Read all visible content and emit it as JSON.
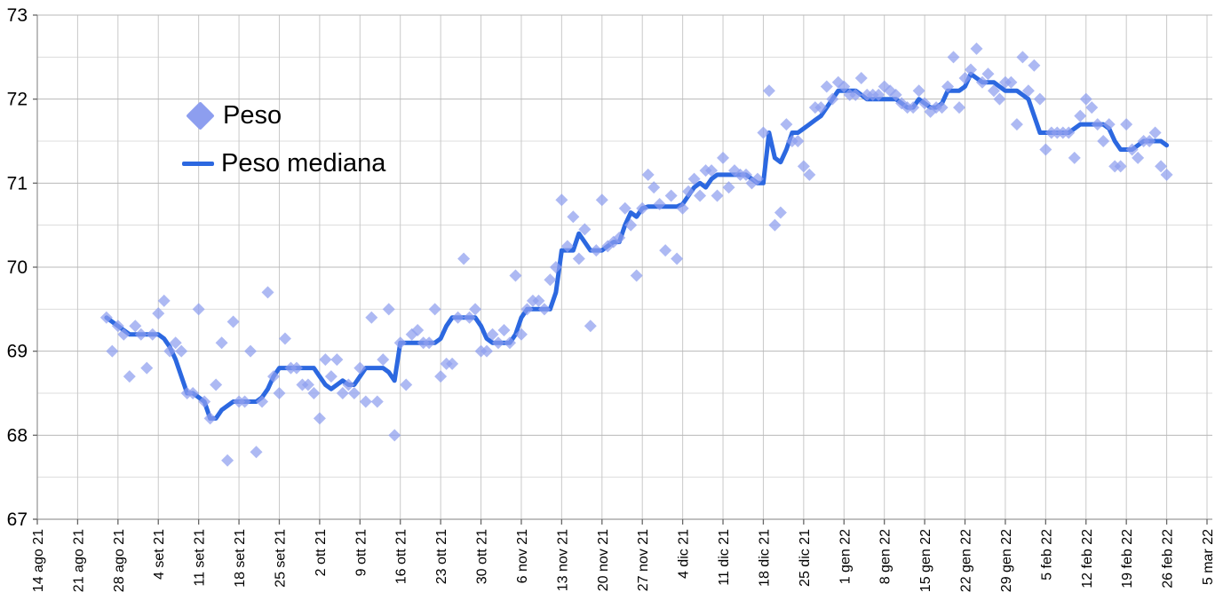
{
  "legend": {
    "peso": "Peso",
    "mediana": "Peso mediana"
  },
  "colors": {
    "scatter": "#8d9eef",
    "median_line": "#2c68e0",
    "grid_major": "#b8b8b8",
    "grid_minor": "#dcdcdc",
    "grid_vertical": "#c9c9c9",
    "axis": "#9a9a9a",
    "text": "#000000",
    "background": "#ffffff"
  },
  "chart_data": {
    "type": "scatter",
    "title": "",
    "xlabel": "",
    "ylabel": "",
    "grid": true,
    "legend_position": "top-left-inside",
    "y_axis": {
      "min": 67,
      "max": 73,
      "major_step": 1,
      "minor_step": 0.5,
      "tick_labels": [
        "73",
        "72",
        "71",
        "70",
        "69",
        "68",
        "67"
      ]
    },
    "x_axis": {
      "tick_labels": [
        "14 ago 21",
        "21 ago 21",
        "28 ago 21",
        "4 set 21",
        "11 set 21",
        "18 set 21",
        "25 set 21",
        "2 ott 21",
        "9 ott 21",
        "16 ott 21",
        "23 ott 21",
        "30 ott 21",
        "6 nov 21",
        "13 nov 21",
        "20 nov 21",
        "27 nov 21",
        "4 dic 21",
        "11 dic 21",
        "18 dic 21",
        "25 dic 21",
        "1 gen 22",
        "8 gen 22",
        "15 gen 22",
        "22 gen 22",
        "29 gen 22",
        "5 feb 22",
        "12 feb 22",
        "19 feb 22",
        "26 feb 22",
        "5 mar 22"
      ],
      "days_per_tick": 7,
      "total_days": 203,
      "data_start_offset_days": 12
    },
    "dates": [
      "26 ago",
      "27 ago",
      "28 ago",
      "29 ago",
      "30 ago",
      "31 ago",
      "1 set",
      "2 set",
      "3 set",
      "4 set",
      "5 set",
      "6 set",
      "7 set",
      "8 set",
      "9 set",
      "10 set",
      "11 set",
      "12 set",
      "13 set",
      "14 set",
      "15 set",
      "16 set",
      "17 set",
      "18 set",
      "19 set",
      "20 set",
      "21 set",
      "22 set",
      "23 set",
      "24 set",
      "25 set",
      "26 set",
      "27 set",
      "28 set",
      "29 set",
      "30 set",
      "1 ott",
      "2 ott",
      "3 ott",
      "4 ott",
      "5 ott",
      "6 ott",
      "7 ott",
      "8 ott",
      "9 ott",
      "10 ott",
      "11 ott",
      "12 ott",
      "13 ott",
      "14 ott",
      "15 ott",
      "16 ott",
      "17 ott",
      "18 ott",
      "19 ott",
      "20 ott",
      "21 ott",
      "22 ott",
      "23 ott",
      "24 ott",
      "25 ott",
      "26 ott",
      "27 ott",
      "28 ott",
      "29 ott",
      "30 ott",
      "31 ott",
      "1 nov",
      "2 nov",
      "3 nov",
      "4 nov",
      "5 nov",
      "6 nov",
      "7 nov",
      "8 nov",
      "9 nov",
      "10 nov",
      "11 nov",
      "12 nov",
      "13 nov",
      "14 nov",
      "15 nov",
      "16 nov",
      "17 nov",
      "18 nov",
      "19 nov",
      "20 nov",
      "21 nov",
      "22 nov",
      "23 nov",
      "24 nov",
      "25 nov",
      "26 nov",
      "27 nov",
      "28 nov",
      "29 nov",
      "30 nov",
      "1 dic",
      "2 dic",
      "3 dic",
      "4 dic",
      "5 dic",
      "6 dic",
      "7 dic",
      "8 dic",
      "9 dic",
      "10 dic",
      "11 dic",
      "12 dic",
      "13 dic",
      "14 dic",
      "15 dic",
      "16 dic",
      "17 dic",
      "18 dic",
      "19 dic",
      "20 dic",
      "21 dic",
      "22 dic",
      "23 dic",
      "24 dic",
      "25 dic",
      "26 dic",
      "27 dic",
      "28 dic",
      "29 dic",
      "30 dic",
      "31 dic",
      "1 gen",
      "2 gen",
      "3 gen",
      "4 gen",
      "5 gen",
      "6 gen",
      "7 gen",
      "8 gen",
      "9 gen",
      "10 gen",
      "11 gen",
      "12 gen",
      "13 gen",
      "14 gen",
      "15 gen",
      "16 gen",
      "17 gen",
      "18 gen",
      "19 gen",
      "20 gen",
      "21 gen",
      "22 gen",
      "23 gen",
      "24 gen",
      "25 gen",
      "26 gen",
      "27 gen",
      "28 gen",
      "29 gen",
      "30 gen",
      "31 gen",
      "1 feb",
      "2 feb",
      "3 feb",
      "4 feb",
      "5 feb",
      "6 feb",
      "7 feb",
      "8 feb",
      "9 feb",
      "10 feb",
      "11 feb",
      "12 feb",
      "13 feb",
      "14 feb",
      "15 feb",
      "16 feb",
      "17 feb",
      "18 feb",
      "19 feb",
      "20 feb",
      "21 feb",
      "22 feb",
      "23 feb",
      "24 feb",
      "25 feb",
      "26 feb"
    ],
    "series": [
      {
        "name": "Peso",
        "type": "scatter",
        "marker": "diamond",
        "values": [
          69.4,
          69.0,
          69.3,
          69.2,
          68.7,
          69.3,
          69.2,
          68.8,
          69.2,
          69.45,
          69.6,
          69.0,
          69.1,
          69.0,
          68.5,
          68.5,
          69.5,
          68.4,
          68.2,
          68.6,
          69.1,
          67.7,
          69.35,
          68.4,
          68.4,
          69.0,
          67.8,
          68.4,
          69.7,
          68.7,
          68.5,
          69.15,
          68.8,
          68.8,
          68.6,
          68.6,
          68.5,
          68.2,
          68.9,
          68.7,
          68.9,
          68.5,
          68.6,
          68.5,
          68.8,
          68.4,
          69.4,
          68.4,
          68.9,
          69.5,
          68.0,
          69.1,
          68.6,
          69.2,
          69.25,
          69.1,
          69.1,
          69.5,
          68.7,
          68.85,
          68.85,
          69.4,
          70.1,
          69.4,
          69.5,
          69.0,
          69.0,
          69.2,
          69.1,
          69.25,
          69.1,
          69.9,
          69.2,
          69.5,
          69.6,
          69.6,
          69.5,
          69.85,
          70.0,
          70.8,
          70.25,
          70.6,
          70.1,
          70.45,
          69.3,
          70.2,
          70.8,
          70.25,
          70.3,
          70.35,
          70.7,
          70.5,
          69.9,
          70.7,
          71.1,
          70.95,
          70.75,
          70.2,
          70.85,
          70.1,
          70.7,
          70.9,
          71.05,
          70.85,
          71.15,
          71.15,
          70.85,
          71.3,
          70.95,
          71.15,
          71.1,
          71.1,
          71.0,
          71.05,
          71.6,
          72.1,
          70.5,
          70.65,
          71.7,
          71.5,
          71.5,
          71.2,
          71.1,
          71.9,
          71.9,
          72.15,
          72.0,
          72.2,
          72.15,
          72.05,
          72.05,
          72.25,
          72.05,
          72.05,
          72.05,
          72.15,
          72.1,
          72.05,
          71.95,
          71.9,
          71.9,
          72.1,
          71.95,
          71.85,
          71.9,
          71.9,
          72.15,
          72.5,
          71.9,
          72.25,
          72.35,
          72.6,
          72.2,
          72.3,
          72.1,
          72.0,
          72.2,
          72.2,
          71.7,
          72.5,
          72.1,
          72.4,
          72.0,
          71.4,
          71.6,
          71.6,
          71.6,
          71.6,
          71.3,
          71.8,
          72.0,
          71.9,
          71.7,
          71.5,
          71.7,
          71.2,
          71.2,
          71.7,
          71.4,
          71.3,
          71.5,
          71.5,
          71.6,
          71.2,
          71.1
        ]
      },
      {
        "name": "Peso mediana",
        "type": "line",
        "values": [
          69.4,
          69.35,
          69.3,
          69.25,
          69.2,
          69.2,
          69.2,
          69.2,
          69.2,
          69.2,
          69.15,
          69.05,
          68.9,
          68.7,
          68.5,
          68.5,
          68.45,
          68.4,
          68.2,
          68.2,
          68.3,
          68.35,
          68.4,
          68.4,
          68.4,
          68.4,
          68.4,
          68.45,
          68.55,
          68.7,
          68.8,
          68.8,
          68.8,
          68.8,
          68.8,
          68.8,
          68.8,
          68.7,
          68.6,
          68.55,
          68.6,
          68.65,
          68.6,
          68.6,
          68.7,
          68.8,
          68.8,
          68.8,
          68.8,
          68.75,
          68.65,
          69.1,
          69.1,
          69.1,
          69.1,
          69.1,
          69.1,
          69.1,
          69.15,
          69.3,
          69.4,
          69.4,
          69.4,
          69.4,
          69.4,
          69.3,
          69.15,
          69.1,
          69.1,
          69.1,
          69.1,
          69.2,
          69.4,
          69.5,
          69.5,
          69.5,
          69.5,
          69.5,
          69.7,
          70.2,
          70.2,
          70.2,
          70.4,
          70.3,
          70.2,
          70.2,
          70.2,
          70.25,
          70.3,
          70.3,
          70.5,
          70.65,
          70.6,
          70.7,
          70.72,
          70.72,
          70.72,
          70.72,
          70.72,
          70.72,
          70.75,
          70.85,
          70.95,
          71.0,
          70.95,
          71.05,
          71.1,
          71.1,
          71.1,
          71.1,
          71.1,
          71.1,
          71.05,
          71.0,
          71.0,
          71.6,
          71.3,
          71.25,
          71.4,
          71.6,
          71.6,
          71.65,
          71.7,
          71.75,
          71.8,
          71.9,
          72.0,
          72.1,
          72.1,
          72.1,
          72.1,
          72.05,
          72.0,
          72.0,
          72.0,
          72.0,
          72.0,
          72.0,
          71.95,
          71.9,
          71.9,
          72.0,
          71.95,
          71.9,
          71.9,
          71.95,
          72.1,
          72.1,
          72.1,
          72.15,
          72.3,
          72.25,
          72.2,
          72.2,
          72.2,
          72.15,
          72.1,
          72.1,
          72.1,
          72.05,
          72.0,
          71.8,
          71.6,
          71.6,
          71.6,
          71.6,
          71.6,
          71.6,
          71.65,
          71.7,
          71.7,
          71.7,
          71.7,
          71.7,
          71.65,
          71.5,
          71.4,
          71.4,
          71.4,
          71.45,
          71.5,
          71.5,
          71.5,
          71.5,
          71.45
        ]
      }
    ]
  }
}
